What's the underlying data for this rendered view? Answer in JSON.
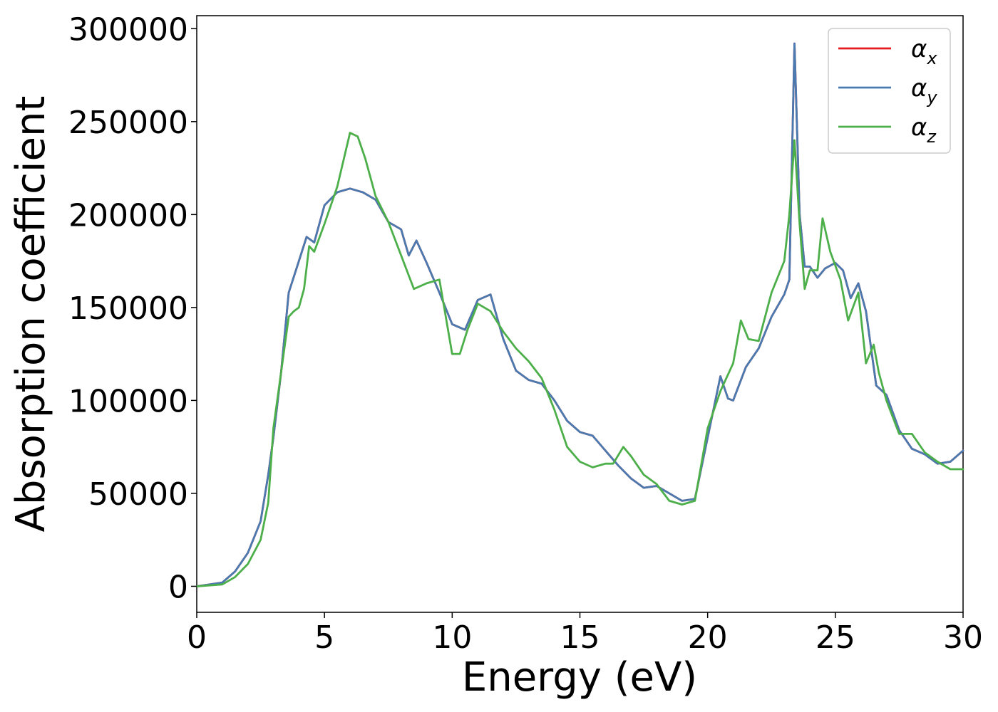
{
  "chart_data": {
    "type": "line",
    "xlabel": "Energy (eV)",
    "ylabel": "Absorption coefficient",
    "xlim": [
      0,
      30
    ],
    "ylim": [
      -14000,
      307000
    ],
    "xticks": [
      0,
      5,
      10,
      15,
      20,
      25,
      30
    ],
    "yticks": [
      0,
      50000,
      100000,
      150000,
      200000,
      250000,
      300000
    ],
    "grid": false,
    "legend_position": "top-right",
    "series": [
      {
        "name": "α_x",
        "legend_base": "α",
        "legend_sub": "x",
        "color": "#e41a1c",
        "x": [
          0,
          1,
          1.5,
          2,
          2.5,
          2.8,
          3,
          3.3,
          3.6,
          4,
          4.3,
          4.6,
          5,
          5.5,
          6,
          6.5,
          7,
          7.5,
          8,
          8.3,
          8.6,
          9,
          9.5,
          10,
          10.5,
          11,
          11.5,
          12,
          12.5,
          13,
          13.5,
          14,
          14.5,
          15,
          15.5,
          16,
          16.5,
          17,
          17.5,
          18,
          18.5,
          19,
          19.5,
          20,
          20.5,
          20.8,
          21,
          21.5,
          22,
          22.5,
          23,
          23.2,
          23.4,
          23.6,
          23.8,
          24,
          24.3,
          24.6,
          25,
          25.3,
          25.6,
          25.9,
          26.2,
          26.6,
          27,
          27.5,
          28,
          28.5,
          29,
          29.5,
          30
        ],
        "y": [
          0,
          2000,
          8000,
          18000,
          35000,
          60000,
          80000,
          115000,
          158000,
          175000,
          188000,
          185000,
          205000,
          212000,
          214000,
          212000,
          208000,
          196000,
          192000,
          178000,
          186000,
          174000,
          158000,
          141000,
          138000,
          154000,
          157000,
          133000,
          116000,
          111000,
          109000,
          100000,
          89000,
          83000,
          81000,
          73000,
          65000,
          58000,
          53000,
          54000,
          50000,
          46000,
          47000,
          80000,
          113000,
          101000,
          100000,
          118000,
          128000,
          145000,
          157000,
          165000,
          292000,
          200000,
          172000,
          172000,
          166000,
          171000,
          174000,
          170000,
          155000,
          163000,
          148000,
          108000,
          103000,
          84000,
          74000,
          71000,
          66000,
          67000,
          73000
        ]
      },
      {
        "name": "α_y",
        "legend_base": "α",
        "legend_sub": "y",
        "color": "#4a7ab0",
        "x": [
          0,
          1,
          1.5,
          2,
          2.5,
          2.8,
          3,
          3.3,
          3.6,
          4,
          4.3,
          4.6,
          5,
          5.5,
          6,
          6.5,
          7,
          7.5,
          8,
          8.3,
          8.6,
          9,
          9.5,
          10,
          10.5,
          11,
          11.5,
          12,
          12.5,
          13,
          13.5,
          14,
          14.5,
          15,
          15.5,
          16,
          16.5,
          17,
          17.5,
          18,
          18.5,
          19,
          19.5,
          20,
          20.5,
          20.8,
          21,
          21.5,
          22,
          22.5,
          23,
          23.2,
          23.4,
          23.6,
          23.8,
          24,
          24.3,
          24.6,
          25,
          25.3,
          25.6,
          25.9,
          26.2,
          26.6,
          27,
          27.5,
          28,
          28.5,
          29,
          29.5,
          30
        ],
        "y": [
          0,
          2000,
          8000,
          18000,
          35000,
          60000,
          80000,
          115000,
          158000,
          175000,
          188000,
          185000,
          205000,
          212000,
          214000,
          212000,
          208000,
          196000,
          192000,
          178000,
          186000,
          174000,
          158000,
          141000,
          138000,
          154000,
          157000,
          133000,
          116000,
          111000,
          109000,
          100000,
          89000,
          83000,
          81000,
          73000,
          65000,
          58000,
          53000,
          54000,
          50000,
          46000,
          47000,
          80000,
          113000,
          101000,
          100000,
          118000,
          128000,
          145000,
          157000,
          165000,
          292000,
          200000,
          172000,
          172000,
          166000,
          171000,
          174000,
          170000,
          155000,
          163000,
          148000,
          108000,
          103000,
          84000,
          74000,
          71000,
          66000,
          67000,
          73000
        ]
      },
      {
        "name": "α_z",
        "legend_base": "α",
        "legend_sub": "z",
        "color": "#4daf4a",
        "x": [
          0,
          1,
          1.5,
          2,
          2.5,
          2.8,
          3,
          3.3,
          3.6,
          3.8,
          4,
          4.2,
          4.4,
          4.6,
          5,
          5.5,
          6,
          6.3,
          6.6,
          7,
          7.5,
          8,
          8.5,
          9,
          9.5,
          10,
          10.3,
          10.6,
          11,
          11.5,
          12,
          12.5,
          13,
          13.5,
          14,
          14.5,
          15,
          15.5,
          16,
          16.3,
          16.7,
          17,
          17.5,
          18,
          18.5,
          19,
          19.5,
          20,
          20.5,
          21,
          21.3,
          21.6,
          22,
          22.5,
          23,
          23.2,
          23.4,
          23.6,
          23.8,
          24,
          24.3,
          24.5,
          24.8,
          25.2,
          25.5,
          25.9,
          26.2,
          26.5,
          26.7,
          27,
          27.5,
          28,
          28.5,
          29,
          29.5,
          30
        ],
        "y": [
          0,
          1000,
          5000,
          12000,
          25000,
          45000,
          85000,
          115000,
          145000,
          148000,
          150000,
          160000,
          183000,
          180000,
          195000,
          215000,
          244000,
          242000,
          230000,
          210000,
          196000,
          178000,
          160000,
          163000,
          165000,
          125000,
          125000,
          138000,
          152000,
          148000,
          137000,
          128000,
          121000,
          112000,
          95000,
          75000,
          67000,
          64000,
          66000,
          66000,
          75000,
          70000,
          60000,
          55000,
          46000,
          44000,
          46000,
          85000,
          105000,
          120000,
          143000,
          133000,
          132000,
          158000,
          175000,
          200000,
          240000,
          195000,
          160000,
          170000,
          170000,
          198000,
          180000,
          165000,
          143000,
          158000,
          120000,
          130000,
          115000,
          100000,
          82000,
          82000,
          72000,
          67000,
          63000,
          63000
        ]
      }
    ]
  }
}
